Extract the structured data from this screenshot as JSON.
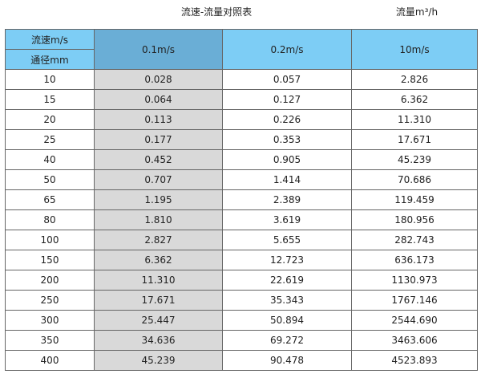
{
  "title": "流速-流量对照表",
  "unit_label": "流量m³/h",
  "header": {
    "velocity_label": "流速m/s",
    "diameter_label": "通径mm",
    "columns": [
      "0.1m/s",
      "0.2m/s",
      "10m/s"
    ]
  },
  "rows": [
    [
      "10",
      "0.028",
      "0.057",
      "2.826"
    ],
    [
      "15",
      "0.064",
      "0.127",
      "6.362"
    ],
    [
      "20",
      "0.113",
      "0.226",
      "11.310"
    ],
    [
      "25",
      "0.177",
      "0.353",
      "17.671"
    ],
    [
      "40",
      "0.452",
      "0.905",
      "45.239"
    ],
    [
      "50",
      "0.707",
      "1.414",
      "70.686"
    ],
    [
      "65",
      "1.195",
      "2.389",
      "119.459"
    ],
    [
      "80",
      "1.810",
      "3.619",
      "180.956"
    ],
    [
      "100",
      "2.827",
      "5.655",
      "282.743"
    ],
    [
      "150",
      "6.362",
      "12.723",
      "636.173"
    ],
    [
      "200",
      "11.310",
      "22.619",
      "1130.973"
    ],
    [
      "250",
      "17.671",
      "35.343",
      "1767.146"
    ],
    [
      "300",
      "25.447",
      "50.894",
      "2544.690"
    ],
    [
      "350",
      "34.636",
      "69.272",
      "3463.606"
    ],
    [
      "400",
      "45.239",
      "90.478",
      "4523.893"
    ]
  ]
}
